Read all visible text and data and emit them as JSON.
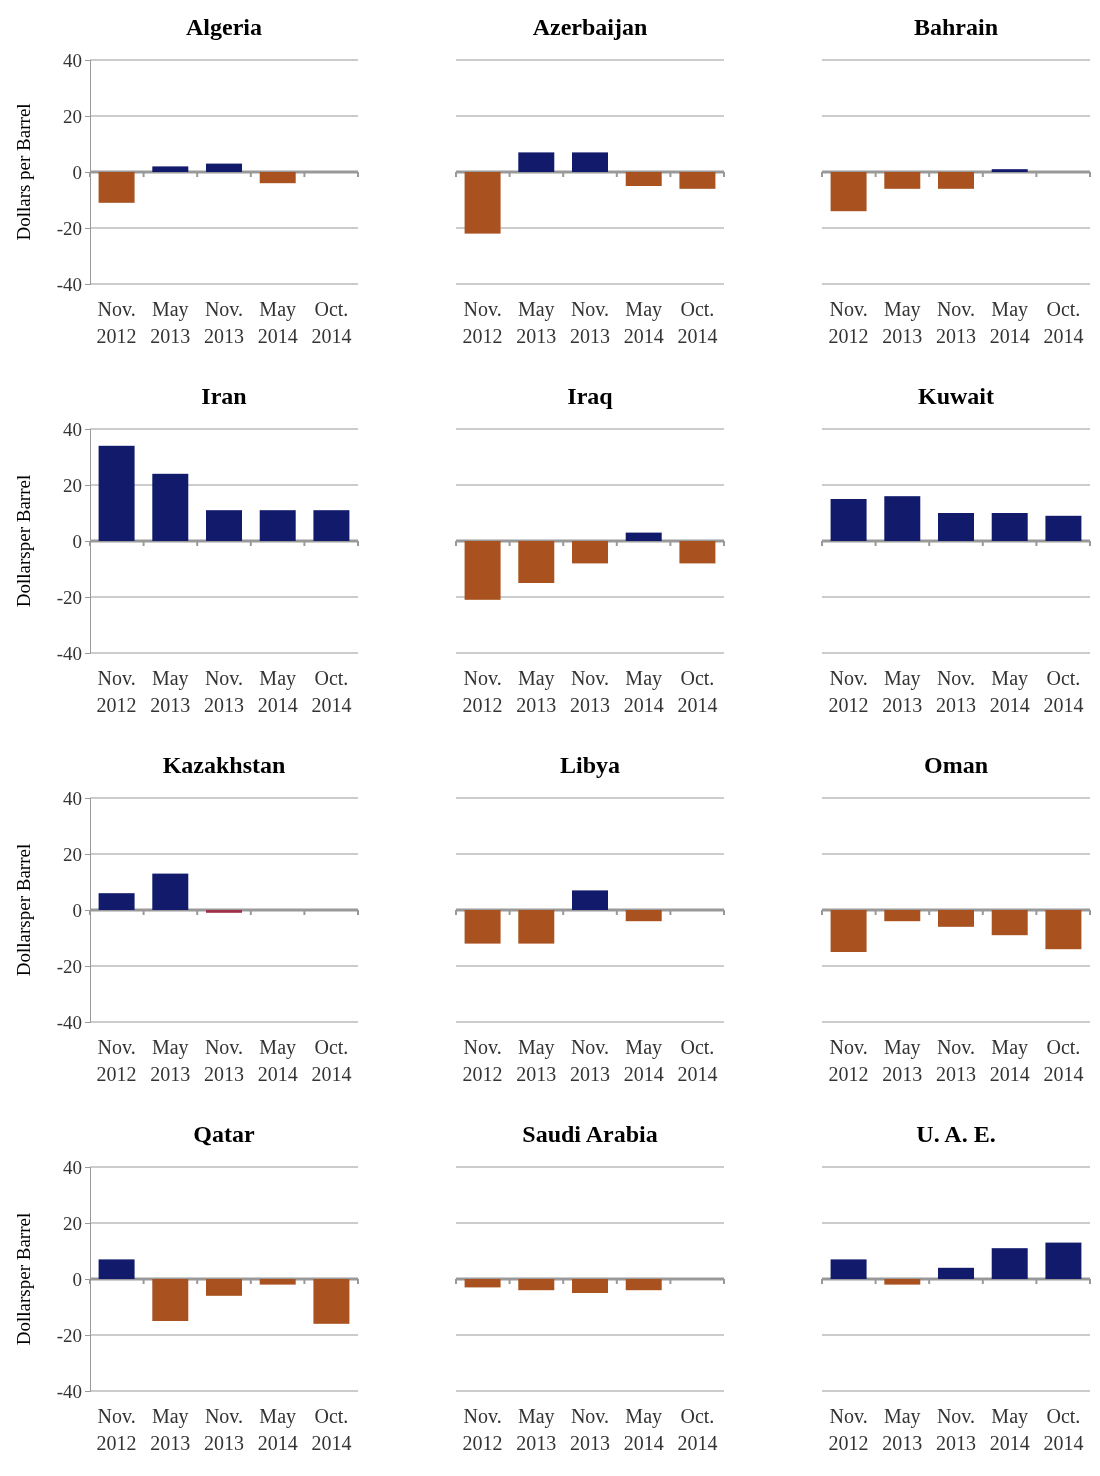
{
  "chart_data": [
    {
      "type": "bar",
      "title": "Algeria",
      "ylabel": "Dollars per Barrel",
      "categories": [
        "Nov. 2012",
        "May 2013",
        "Nov. 2013",
        "May 2014",
        "Oct. 2014"
      ],
      "values": [
        -11,
        2,
        3,
        -4,
        0
      ],
      "colors": [
        "#a9521f",
        "#111a6b",
        "#111a6b",
        "#a9521f",
        "#a9521f"
      ],
      "ylim": [
        -40,
        40
      ],
      "yticks": [
        -40,
        -20,
        0,
        20,
        40
      ],
      "grid": "y"
    },
    {
      "type": "bar",
      "title": "Azerbaijan",
      "categories": [
        "Nov. 2012",
        "May 2013",
        "Nov. 2013",
        "May 2014",
        "Oct. 2014"
      ],
      "values": [
        -22,
        7,
        7,
        -5,
        -6
      ],
      "colors": [
        "#a9521f",
        "#111a6b",
        "#111a6b",
        "#a9521f",
        "#a9521f"
      ],
      "ylim": [
        -40,
        40
      ],
      "yticks": [
        -40,
        -20,
        0,
        20,
        40
      ],
      "grid": "y",
      "tick_labels": "x"
    },
    {
      "type": "bar",
      "title": "Bahrain",
      "categories": [
        "Nov. 2012",
        "May 2013",
        "Nov. 2013",
        "May 2014",
        "Oct. 2014"
      ],
      "values": [
        -14,
        -6,
        -6,
        1,
        0
      ],
      "colors": [
        "#a9521f",
        "#a9521f",
        "#a9521f",
        "#111a6b",
        "#a9521f"
      ],
      "ylim": [
        -40,
        40
      ],
      "yticks": [
        -40,
        -20,
        0,
        20,
        40
      ],
      "grid": "y",
      "tick_labels": "x"
    },
    {
      "type": "bar",
      "title": "Iran",
      "ylabel": "Dollarsper Barrel",
      "categories": [
        "Nov. 2012",
        "May 2013",
        "Nov. 2013",
        "May 2014",
        "Oct. 2014"
      ],
      "values": [
        34,
        24,
        11,
        11,
        11
      ],
      "colors": [
        "#111a6b",
        "#111a6b",
        "#111a6b",
        "#111a6b",
        "#111a6b"
      ],
      "ylim": [
        -40,
        40
      ],
      "yticks": [
        -40,
        -20,
        0,
        20,
        40
      ],
      "grid": "y"
    },
    {
      "type": "bar",
      "title": "Iraq",
      "categories": [
        "Nov. 2012",
        "May 2013",
        "Nov. 2013",
        "May 2014",
        "Oct. 2014"
      ],
      "values": [
        -21,
        -15,
        -8,
        3,
        -8
      ],
      "colors": [
        "#a9521f",
        "#a9521f",
        "#a9521f",
        "#111a6b",
        "#a9521f"
      ],
      "ylim": [
        -40,
        40
      ],
      "yticks": [
        -40,
        -20,
        0,
        20,
        40
      ],
      "grid": "y",
      "tick_labels": "x"
    },
    {
      "type": "bar",
      "title": "Kuwait",
      "categories": [
        "Nov. 2012",
        "May 2013",
        "Nov. 2013",
        "May 2014",
        "Oct. 2014"
      ],
      "values": [
        15,
        16,
        10,
        10,
        9
      ],
      "colors": [
        "#111a6b",
        "#111a6b",
        "#111a6b",
        "#111a6b",
        "#111a6b"
      ],
      "ylim": [
        -40,
        40
      ],
      "yticks": [
        -40,
        -20,
        0,
        20,
        40
      ],
      "grid": "y",
      "tick_labels": "x"
    },
    {
      "type": "bar",
      "title": "Kazakhstan",
      "ylabel": "Dollarsper Barrel",
      "categories": [
        "Nov. 2012",
        "May 2013",
        "Nov. 2013",
        "May 2014",
        "Oct. 2014"
      ],
      "values": [
        6,
        13,
        -1,
        0,
        0
      ],
      "colors": [
        "#111a6b",
        "#111a6b",
        "#a0304a",
        "#a9521f",
        "#a9521f"
      ],
      "ylim": [
        -40,
        40
      ],
      "yticks": [
        -40,
        -20,
        0,
        20,
        40
      ],
      "grid": "y"
    },
    {
      "type": "bar",
      "title": "Libya",
      "categories": [
        "Nov. 2012",
        "May 2013",
        "Nov. 2013",
        "May 2014",
        "Oct. 2014"
      ],
      "values": [
        -12,
        -12,
        7,
        -4,
        0
      ],
      "colors": [
        "#a9521f",
        "#a9521f",
        "#111a6b",
        "#a9521f",
        "#a9521f"
      ],
      "ylim": [
        -40,
        40
      ],
      "yticks": [
        -40,
        -20,
        0,
        20,
        40
      ],
      "grid": "y",
      "tick_labels": "x"
    },
    {
      "type": "bar",
      "title": "Oman",
      "categories": [
        "Nov. 2012",
        "May 2013",
        "Nov. 2013",
        "May 2014",
        "Oct. 2014"
      ],
      "values": [
        -15,
        -4,
        -6,
        -9,
        -14
      ],
      "colors": [
        "#a9521f",
        "#a9521f",
        "#a9521f",
        "#a9521f",
        "#a9521f"
      ],
      "ylim": [
        -40,
        40
      ],
      "yticks": [
        -40,
        -20,
        0,
        20,
        40
      ],
      "grid": "y",
      "tick_labels": "x"
    },
    {
      "type": "bar",
      "title": "Qatar",
      "ylabel": "Dollarsper Barrel",
      "categories": [
        "Nov. 2012",
        "May 2013",
        "Nov. 2013",
        "May 2014",
        "Oct. 2014"
      ],
      "values": [
        7,
        -15,
        -6,
        -2,
        -16
      ],
      "colors": [
        "#111a6b",
        "#a9521f",
        "#a9521f",
        "#a9521f",
        "#a9521f"
      ],
      "ylim": [
        -40,
        40
      ],
      "yticks": [
        -40,
        -20,
        0,
        20,
        40
      ],
      "grid": "y"
    },
    {
      "type": "bar",
      "title": "Saudi Arabia",
      "categories": [
        "Nov. 2012",
        "May 2013",
        "Nov. 2013",
        "May 2014",
        "Oct. 2014"
      ],
      "values": [
        -3,
        -4,
        -5,
        -4,
        0
      ],
      "colors": [
        "#a9521f",
        "#a9521f",
        "#a9521f",
        "#a9521f",
        "#a9521f"
      ],
      "ylim": [
        -40,
        40
      ],
      "yticks": [
        -40,
        -20,
        0,
        20,
        40
      ],
      "grid": "y",
      "tick_labels": "x"
    },
    {
      "type": "bar",
      "title": "U. A. E.",
      "categories": [
        "Nov. 2012",
        "May 2013",
        "Nov. 2013",
        "May 2014",
        "Oct. 2014"
      ],
      "values": [
        7,
        -2,
        4,
        11,
        13
      ],
      "colors": [
        "#111a6b",
        "#a9521f",
        "#111a6b",
        "#111a6b",
        "#111a6b"
      ],
      "ylim": [
        -40,
        40
      ],
      "yticks": [
        -40,
        -20,
        0,
        20,
        40
      ],
      "grid": "y",
      "tick_labels": "x"
    }
  ]
}
